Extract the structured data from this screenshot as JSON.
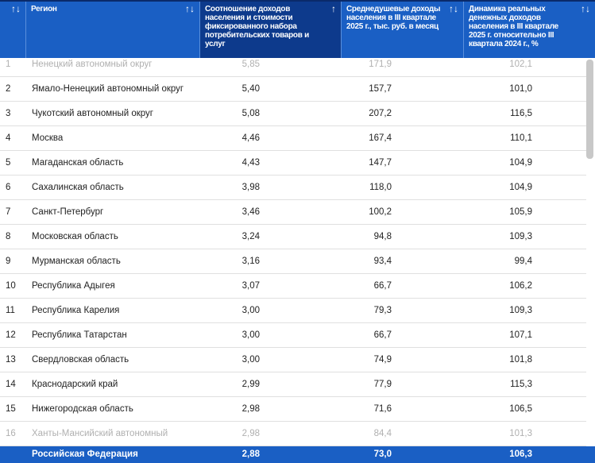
{
  "header": {
    "col_num": "",
    "region": "Регион",
    "ratio": "Соотношение доходов населения и стоимости фиксированного набора потребительских товаров и услуг",
    "income": "Среднедушевые доходы населения в III квартале 2025 г., тыс. руб. в месяц",
    "dynamics": "Динамика реальных денежных доходов населения в III квартале 2025 г. относительно III квартала 2024 г., %",
    "sort_icon": "↑↓",
    "sorted_icon": "↑"
  },
  "rows": [
    [
      "1",
      "Ненецкий автономный округ",
      "5,85",
      "171,9",
      "102,1"
    ],
    [
      "2",
      "Ямало-Ненецкий автономный округ",
      "5,40",
      "157,7",
      "101,0"
    ],
    [
      "3",
      "Чукотский автономный округ",
      "5,08",
      "207,2",
      "116,5"
    ],
    [
      "4",
      "Москва",
      "4,46",
      "167,4",
      "110,1"
    ],
    [
      "5",
      "Магаданская область",
      "4,43",
      "147,7",
      "104,9"
    ],
    [
      "6",
      "Сахалинская область",
      "3,98",
      "118,0",
      "104,9"
    ],
    [
      "7",
      "Санкт-Петербург",
      "3,46",
      "100,2",
      "105,9"
    ],
    [
      "8",
      "Московская область",
      "3,24",
      "94,8",
      "109,3"
    ],
    [
      "9",
      "Мурманская область",
      "3,16",
      "93,4",
      "99,4"
    ],
    [
      "10",
      "Республика Адыгея",
      "3,07",
      "66,7",
      "106,2"
    ],
    [
      "11",
      "Республика Карелия",
      "3,00",
      "79,3",
      "109,3"
    ],
    [
      "12",
      "Республика Татарстан",
      "3,00",
      "66,7",
      "107,1"
    ],
    [
      "13",
      "Свердловская область",
      "3,00",
      "74,9",
      "101,8"
    ],
    [
      "14",
      "Краснодарский край",
      "2,99",
      "77,9",
      "115,3"
    ],
    [
      "15",
      "Нижегородская область",
      "2,98",
      "71,6",
      "106,5"
    ],
    [
      "16",
      "Ханты-Мансийский автономный",
      "2,98",
      "84,4",
      "101,3"
    ]
  ],
  "footer": {
    "region": "Российская Федерация",
    "ratio": "2,88",
    "income": "73,0",
    "dynamics": "106,3"
  },
  "colors": {
    "header": "#1a5fc4",
    "active_header": "#0d3a8c"
  }
}
